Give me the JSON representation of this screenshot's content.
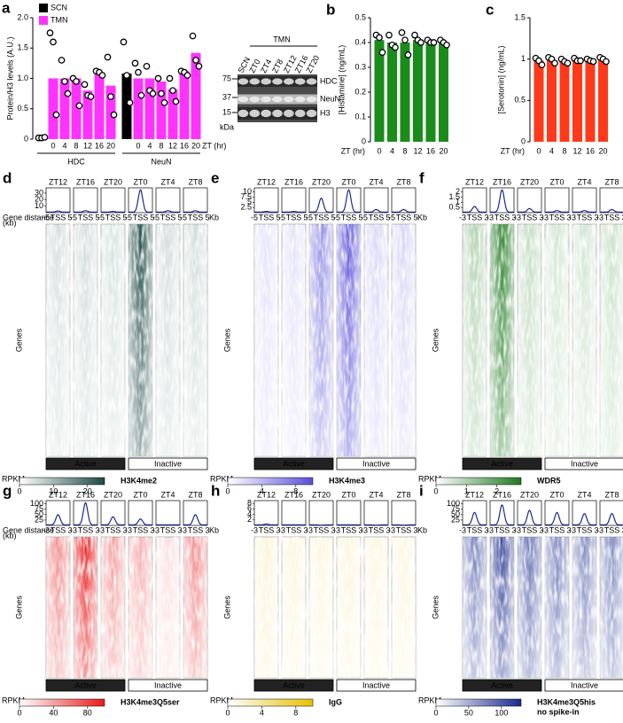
{
  "chart_data": [
    {
      "type": "grouped_bar",
      "label": "a",
      "ylabel": "Protein/H3 levels (A.U.)",
      "xlabel": "ZT (hr)",
      "groups": [
        "HDC",
        "NeuN"
      ],
      "categories": [
        null,
        "0",
        "4",
        "8",
        "12",
        "16",
        "20",
        null,
        "0",
        "4",
        "8",
        "12",
        "16",
        "20"
      ],
      "series": [
        {
          "name": "SCN",
          "color": "#000000",
          "values": [
            0.02,
            null,
            null,
            null,
            null,
            null,
            null,
            1.08,
            null,
            null,
            null,
            null,
            null,
            null
          ],
          "points": [
            [
              0.02,
              0.02,
              0.03
            ],
            null,
            null,
            null,
            null,
            null,
            null,
            [
              1.6,
              1.05,
              0.6
            ],
            null,
            null,
            null,
            null,
            null,
            null
          ]
        },
        {
          "name": "TMN",
          "color": "#ff33ff",
          "values": [
            null,
            1.0,
            1.0,
            1.0,
            0.8,
            1.1,
            0.88,
            null,
            1.0,
            1.0,
            0.95,
            0.82,
            1.12,
            1.42
          ],
          "points": [
            null,
            [
              1.75,
              1.6,
              0.4
            ],
            [
              1.3,
              0.95,
              0.75
            ],
            [
              1.0,
              0.95,
              0.55
            ],
            [
              0.9,
              0.72,
              0.7
            ],
            [
              1.12,
              1.1,
              1.05
            ],
            [
              1.35,
              0.7,
              0.4
            ],
            null,
            [
              1.25,
              1.1,
              0.72
            ],
            [
              1.2,
              0.8,
              0.75
            ],
            [
              1.0,
              0.75,
              0.6
            ],
            [
              1.0,
              0.8,
              0.62
            ],
            [
              1.12,
              1.1,
              1.05
            ],
            [
              1.7,
              1.3,
              1.2
            ]
          ]
        }
      ],
      "ylim": [
        0,
        2
      ],
      "yticks": [
        0,
        0.5,
        {
          "value": 1,
          "label": "1.0"
        },
        1.5,
        {
          "value": 2,
          "label": "2.0"
        }
      ],
      "blot": {
        "title": "TMN",
        "lanes": [
          "SCN",
          "ZT0",
          "ZT4",
          "ZT8",
          "ZT12",
          "ZT16",
          "ZT20"
        ],
        "bands": [
          "HDC",
          "NeuN",
          "H3"
        ],
        "kda": [
          75,
          37,
          15
        ],
        "kda_label": "kDa"
      }
    },
    {
      "type": "bar",
      "label": "b",
      "ylabel": "[Histamine] (ng/mL)",
      "xlabel": "ZT (hr)",
      "color": "#1a8c1a",
      "categories": [
        "0",
        "4",
        "8",
        "12",
        "16",
        "20"
      ],
      "values": [
        0.41,
        0.4,
        0.4,
        0.41,
        0.41,
        0.4
      ],
      "points": [
        [
          0.43,
          0.42,
          0.36
        ],
        [
          0.43,
          0.39,
          0.38
        ],
        [
          0.44,
          0.41,
          0.35
        ],
        [
          0.43,
          0.41,
          0.4
        ],
        [
          0.41,
          0.4,
          0.4
        ],
        [
          0.41,
          0.4,
          0.39
        ]
      ],
      "ylim": [
        0,
        0.5
      ],
      "yticks": [
        0,
        0.1,
        0.2,
        0.3,
        0.4,
        0.5
      ]
    },
    {
      "type": "bar",
      "label": "c",
      "ylabel": "[Serotonin] (ng/mL)",
      "xlabel": "ZT (hr)",
      "color": "#ff3a1a",
      "categories": [
        "0",
        "4",
        "8",
        "12",
        "16",
        "20"
      ],
      "values": [
        0.98,
        0.98,
        0.97,
        0.99,
        0.98,
        0.99
      ],
      "points": [
        [
          1.01,
          0.98,
          0.93
        ],
        [
          1.02,
          1.0,
          0.95
        ],
        [
          1.0,
          0.97,
          0.95
        ],
        [
          1.01,
          0.98,
          0.98
        ],
        [
          1.0,
          0.98,
          0.97
        ],
        [
          1.02,
          1.0,
          0.97
        ]
      ],
      "ylim": [
        0,
        1.5
      ],
      "yticks": [
        0,
        0.5,
        1,
        1.5
      ]
    },
    {
      "type": "heatmap",
      "label": "d",
      "columns": [
        "ZT12",
        "ZT16",
        "ZT20",
        "ZT0",
        "ZT4",
        "ZT8"
      ],
      "color": "#1d4a45",
      "profile_peaks": [
        2.5,
        3,
        2,
        35,
        3,
        3
      ],
      "ylim": [
        0,
        38
      ],
      "yticks": [
        10,
        20,
        30
      ],
      "profile_xticks": [
        "-5",
        "TSS",
        "5"
      ],
      "xunit": "Kb",
      "gene_distance": [
        "Gene distance",
        "(kb)"
      ],
      "ylabel": "Genes",
      "groups": [
        "Active",
        "Inactive"
      ],
      "cbar_label": "RPKM",
      "cbar_lim": [
        0,
        25
      ],
      "cbar_ticks": [
        0,
        10,
        20
      ],
      "mark": [
        "H3K4me2"
      ]
    },
    {
      "type": "heatmap",
      "label": "e",
      "columns": [
        "ZT12",
        "ZT16",
        "ZT20",
        "ZT0",
        "ZT4",
        "ZT8"
      ],
      "color": "#5a4fd8",
      "profile_peaks": [
        0.6,
        0.6,
        7,
        11,
        1.5,
        1.5
      ],
      "ylim": [
        0,
        12
      ],
      "yticks": [
        2.5,
        5,
        7.5,
        10
      ],
      "profile_xticks": [
        "-5",
        "TSS",
        "5"
      ],
      "xunit": "Kb",
      "ylabel": "Genes",
      "groups": [
        "Active",
        "Inactive"
      ],
      "cbar_label": "RPKM",
      "cbar_lim": [
        0,
        10
      ],
      "cbar_ticks": [
        0,
        4,
        8
      ],
      "mark": [
        "H3K4me3"
      ]
    },
    {
      "type": "heatmap",
      "label": "f",
      "columns": [
        "ZT12",
        "ZT16",
        "ZT20",
        "ZT0",
        "ZT4",
        "ZT8"
      ],
      "color": "#1f7a1f",
      "profile_peaks": [
        0.6,
        2.2,
        0.4,
        0.2,
        0.2,
        0.3
      ],
      "ylim": [
        0,
        2.4
      ],
      "yticks": [
        0.5,
        1,
        1.5,
        2
      ],
      "profile_xticks": [
        "-3",
        "TSS",
        "3"
      ],
      "xunit": "Kb",
      "ylabel": "Genes",
      "groups": [
        "Active",
        "Inactive"
      ],
      "cbar_label": "RPKM",
      "cbar_lim": [
        0,
        2.8
      ],
      "cbar_ticks": [
        0,
        1,
        2
      ],
      "mark": [
        "WDR5"
      ]
    },
    {
      "type": "heatmap",
      "label": "g",
      "columns": [
        "ZT12",
        "ZT16",
        "ZT20",
        "ZT0",
        "ZT4",
        "ZT8"
      ],
      "color": "#e8191a",
      "profile_peaks": [
        50,
        105,
        40,
        30,
        3,
        50
      ],
      "ylim": [
        0,
        115
      ],
      "yticks": [
        25,
        50,
        75,
        100
      ],
      "profile_xticks": [
        "-3",
        "TSS",
        "3"
      ],
      "xunit": "Kb",
      "gene_distance": [
        "Gene distance",
        "(kb)"
      ],
      "ylabel": "Genes",
      "groups": [
        "Active",
        "Inactive"
      ],
      "cbar_label": "RPKM",
      "cbar_lim": [
        0,
        100
      ],
      "cbar_ticks": [
        0,
        40,
        80
      ],
      "mark": [
        "H3K4me3Q5ser"
      ]
    },
    {
      "type": "heatmap",
      "label": "h",
      "columns": [
        "ZT12",
        "ZT16",
        "ZT20",
        "ZT0",
        "ZT4",
        "ZT8"
      ],
      "color": "#e8c000",
      "profile_peaks": [
        0.5,
        0.2,
        0.1,
        0.2,
        0.1,
        0.1
      ],
      "ylim": [
        0,
        9
      ],
      "yticks": [
        2,
        4,
        6,
        8
      ],
      "profile_xticks": [
        "-3",
        "TSS",
        "3"
      ],
      "xunit": "Kb",
      "ylabel": "Genes",
      "groups": [
        "Active",
        "Inactive"
      ],
      "cbar_label": "RPKM",
      "cbar_lim": [
        0,
        10
      ],
      "cbar_ticks": [
        0,
        4,
        8
      ],
      "mark": [
        "IgG"
      ]
    },
    {
      "type": "heatmap",
      "label": "i",
      "columns": [
        "ZT12",
        "ZT16",
        "ZT20",
        "ZT0",
        "ZT4",
        "ZT8"
      ],
      "color": "#1a2a8c",
      "profile_peaks": [
        60,
        95,
        70,
        60,
        55,
        55
      ],
      "ylim": [
        0,
        115
      ],
      "yticks": [
        25,
        50,
        75,
        100
      ],
      "profile_xticks": [
        "-3",
        "TSS",
        "3"
      ],
      "xunit": "Kb",
      "ylabel": "Genes",
      "groups": [
        "Active",
        "Inactive"
      ],
      "cbar_label": "RPKM",
      "cbar_lim": [
        0,
        130
      ],
      "cbar_ticks": [
        0,
        50,
        100
      ],
      "mark": [
        "H3K4me3Q5his",
        "no spike-in"
      ]
    }
  ]
}
